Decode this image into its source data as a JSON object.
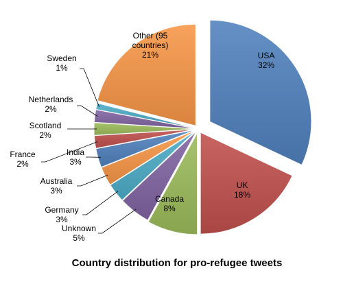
{
  "chart_data": {
    "type": "pie",
    "title": "Country distribution for pro-refugee tweets",
    "slices": [
      {
        "name": "USA",
        "label": [
          "USA",
          "32%"
        ],
        "value": 32,
        "color": "#4F81BD"
      },
      {
        "name": "UK",
        "label": [
          "UK",
          "18%"
        ],
        "value": 18,
        "color": "#C0504D"
      },
      {
        "name": "Canada",
        "label": [
          "Canada",
          "8%"
        ],
        "value": 8,
        "color": "#9BBB59"
      },
      {
        "name": "Unknown",
        "label": [
          "Unknown",
          "5%"
        ],
        "value": 5,
        "color": "#8064A2"
      },
      {
        "name": "Germany",
        "label": [
          "Germany",
          "3%"
        ],
        "value": 3,
        "color": "#4BACC6"
      },
      {
        "name": "Australia",
        "label": [
          "Australia",
          "3%"
        ],
        "value": 3,
        "color": "#F79646"
      },
      {
        "name": "India",
        "label": [
          "India",
          "3%"
        ],
        "value": 3,
        "color": "#4F81BD"
      },
      {
        "name": "France",
        "label": [
          "France",
          "2%"
        ],
        "value": 2,
        "color": "#C0504D"
      },
      {
        "name": "Scotland",
        "label": [
          "Scotland",
          "2%"
        ],
        "value": 2,
        "color": "#9BBB59"
      },
      {
        "name": "Netherlands",
        "label": [
          "Netherlands",
          "2%"
        ],
        "value": 2,
        "color": "#8064A2"
      },
      {
        "name": "Sweden",
        "label": [
          "Sweden",
          "1%"
        ],
        "value": 1,
        "color": "#4BACC6"
      },
      {
        "name": "Other (95 countries)",
        "label": [
          "Other (95",
          "countries)",
          "21%"
        ],
        "value": 21,
        "color": "#F79646"
      }
    ]
  }
}
